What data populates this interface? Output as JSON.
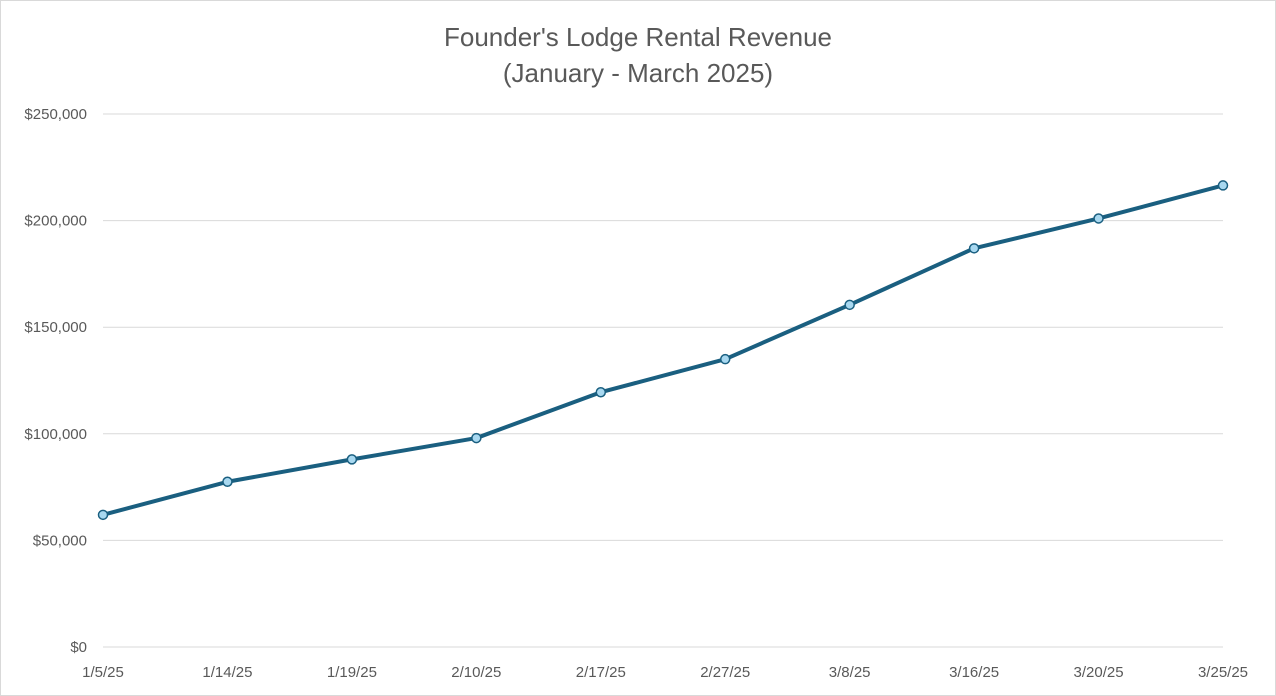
{
  "chart_data": {
    "type": "line",
    "title": "Founder's Lodge Rental Revenue",
    "subtitle": "(January - March 2025)",
    "categories": [
      "1/5/25",
      "1/14/25",
      "1/19/25",
      "2/10/25",
      "2/17/25",
      "2/27/25",
      "3/8/25",
      "3/16/25",
      "3/20/25",
      "3/25/25"
    ],
    "series": [
      {
        "values": [
          62000,
          77500,
          88000,
          98000,
          119500,
          135000,
          160500,
          187000,
          201000,
          216500
        ],
        "color": "#1a5f80",
        "marker_fill": "#a8d8f0"
      }
    ],
    "ylim": [
      0,
      250000
    ],
    "y_ticks": [
      0,
      50000,
      100000,
      150000,
      200000,
      250000
    ],
    "y_tick_labels": [
      "$0",
      "$50,000",
      "$100,000",
      "$150,000",
      "$200,000",
      "$250,000"
    ],
    "grid": true,
    "legend": "none",
    "gridline_color": "#d9d9d9"
  }
}
